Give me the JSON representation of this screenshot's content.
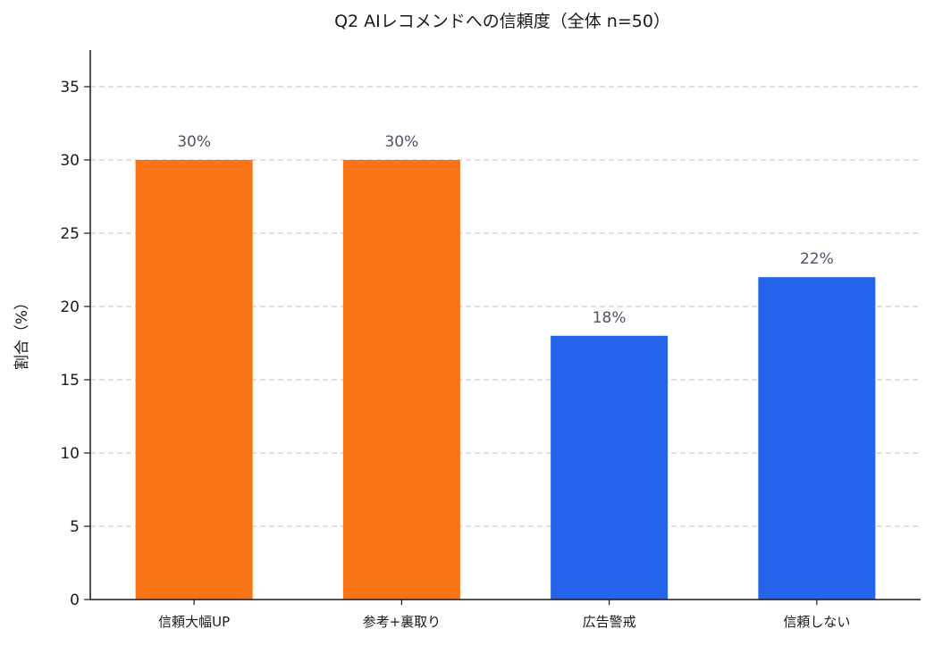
{
  "chart_data": {
    "type": "bar",
    "title": "Q2 AIレコメンドへの信頼度（全体 n=50）",
    "xlabel": "",
    "ylabel": "割合（%）",
    "ylim": [
      0,
      37.5
    ],
    "yticks": [
      0,
      5,
      10,
      15,
      20,
      25,
      30,
      35
    ],
    "categories": [
      "信頼大幅UP",
      "参考+裏取り",
      "広告警戒",
      "信頼しない"
    ],
    "values": [
      30,
      30,
      18,
      22
    ],
    "data_labels": [
      "30%",
      "30%",
      "18%",
      "22%"
    ],
    "bar_colors": [
      "#f97316",
      "#f97316",
      "#2563eb",
      "#2563eb"
    ],
    "grid": true,
    "grid_axis": "y",
    "grid_color": "#cccccc",
    "axis_color": "#1a1a1a",
    "label_color": "#4b5563"
  }
}
